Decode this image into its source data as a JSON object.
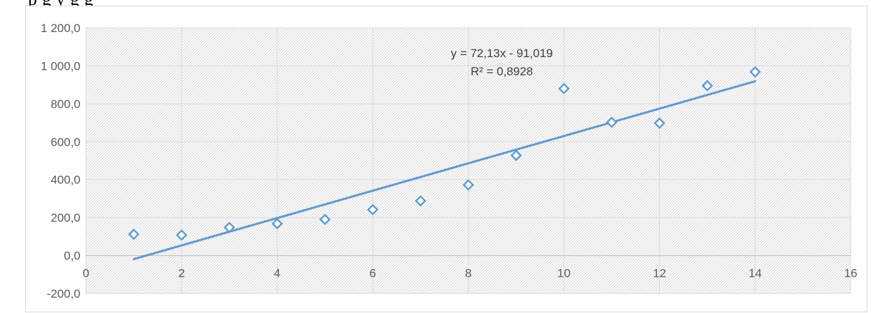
{
  "caption_fragment": "p                                                                                                 g y g g",
  "chart_data": {
    "type": "scatter",
    "title": "",
    "xlabel": "",
    "ylabel": "",
    "xlim": [
      0,
      16
    ],
    "ylim": [
      -200,
      1200
    ],
    "x_ticks": [
      0,
      2,
      4,
      6,
      8,
      10,
      12,
      14,
      16
    ],
    "x_tick_labels": [
      "0",
      "2",
      "4",
      "6",
      "8",
      "10",
      "12",
      "14",
      "16"
    ],
    "y_ticks": [
      -200,
      0,
      200,
      400,
      600,
      800,
      1000,
      1200
    ],
    "y_tick_labels": [
      "-200,0",
      "0,0",
      "200,0",
      "400,0",
      "600,0",
      "800,0",
      "1 000,0",
      "1 200,0"
    ],
    "grid": true,
    "plot_area_pattern": "diagonal-hatch",
    "series": [
      {
        "marker": "diamond-open",
        "color": "#5b9bd5",
        "x": [
          1,
          2,
          3,
          4,
          5,
          6,
          7,
          8,
          9,
          10,
          11,
          12,
          13,
          14
        ],
        "y": [
          112,
          108,
          148,
          168,
          190,
          242,
          288,
          372,
          528,
          880,
          702,
          698,
          895,
          968
        ]
      }
    ],
    "trendline": {
      "type": "linear",
      "slope": 72.13,
      "intercept": -91.019,
      "x_range": [
        1,
        14
      ],
      "color": "#5b9bd5",
      "equation_label": "y = 72,13x - 91,019",
      "r2_label": "R² = 0,8928"
    }
  }
}
